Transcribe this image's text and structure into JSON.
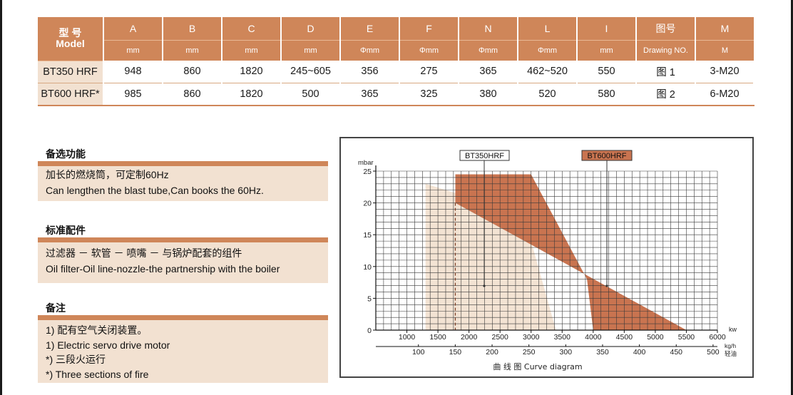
{
  "table": {
    "model_head": [
      "型 号",
      "Model"
    ],
    "columns": [
      {
        "name": "A",
        "unit": "mm"
      },
      {
        "name": "B",
        "unit": "mm"
      },
      {
        "name": "C",
        "unit": "mm"
      },
      {
        "name": "D",
        "unit": "mm"
      },
      {
        "name": "E",
        "unit": "Φmm"
      },
      {
        "name": "F",
        "unit": "Φmm"
      },
      {
        "name": "N",
        "unit": "Φmm"
      },
      {
        "name": "L",
        "unit": "Φmm"
      },
      {
        "name": "I",
        "unit": "mm"
      },
      {
        "name": "图号",
        "unit": "Drawing NO."
      },
      {
        "name": "M",
        "unit": "M"
      }
    ],
    "rows": [
      {
        "model": "BT350 HRF",
        "values": [
          "948",
          "860",
          "1820",
          "245~605",
          "356",
          "275",
          "365",
          "462~520",
          "550",
          "图 1",
          "3-M20"
        ]
      },
      {
        "model": "BT600 HRF*",
        "values": [
          "985",
          "860",
          "1820",
          "500",
          "365",
          "325",
          "380",
          "520",
          "580",
          "图 2",
          "6-M20"
        ]
      }
    ]
  },
  "options": {
    "title": "备选功能",
    "lines": [
      "加长的燃烧筒，可定制60Hz",
      "Can lengthen the blast tube,Can books the 60Hz."
    ]
  },
  "accessories": {
    "title": "标准配件",
    "lines": [
      "过滤器 － 软管 － 喷嘴 － 与锅炉配套的组件",
      "Oil filter-Oil line-nozzle-the partnership with the boiler"
    ]
  },
  "notes": {
    "title": "备注",
    "lines": [
      "1) 配有空气关闭装置。",
      "1) Electric servo drive motor",
      "*) 三段火运行",
      "*) Three sections of fire"
    ]
  },
  "chart_data": {
    "type": "area",
    "title": "曲 线 图 Curve diagram",
    "ylabel": "mbar",
    "xlabel": "kw",
    "xlabel2": "kg/h 轻油",
    "ylim": [
      0,
      25
    ],
    "xlim": [
      500,
      6000
    ],
    "yticks": [
      0,
      5,
      10,
      15,
      20,
      25
    ],
    "xticks_kw": [
      1000,
      1500,
      2000,
      2500,
      3000,
      3500,
      4000,
      4500,
      5000,
      5500,
      6000
    ],
    "xticks_kgh": [
      100,
      150,
      200,
      250,
      300,
      350,
      400,
      450,
      500
    ],
    "grid": true,
    "colors": {
      "bt350": "#f3e3d3",
      "bt600": "#c97450",
      "grid": "#3a3a3a"
    },
    "series": [
      {
        "name": "BT350HRF",
        "kw": [
          1300,
          1300,
          2300,
          2500,
          3000,
          3400
        ],
        "mbar": [
          0,
          23,
          20,
          19,
          14,
          0
        ]
      },
      {
        "name": "BT600HRF",
        "kw": [
          1780,
          1780,
          2300,
          2500,
          2800,
          3000,
          3900,
          4000,
          5500
        ],
        "mbar": [
          20,
          24.5,
          24.5,
          24.5,
          24.5,
          24.5,
          8,
          0,
          0
        ]
      }
    ]
  }
}
